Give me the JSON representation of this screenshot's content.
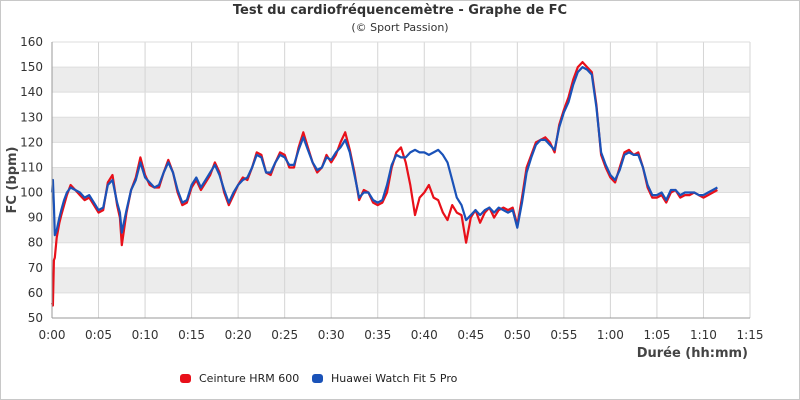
{
  "chart_data": {
    "type": "line",
    "title": "Test du cardiofréquencemètre - Graphe de FC",
    "subtitle": "(© Sport Passion)",
    "xlabel": "Durée (hh:mm)",
    "ylabel": "FC (bpm)",
    "xlim": [
      0,
      75
    ],
    "ylim": [
      50,
      160
    ],
    "x_ticks": [
      "0:00",
      "0:05",
      "0:10",
      "0:15",
      "0:20",
      "0:25",
      "0:30",
      "0:35",
      "0:40",
      "0:45",
      "0:50",
      "0:55",
      "1:00",
      "1:05",
      "1:10",
      "1:15"
    ],
    "y_ticks": [
      50,
      60,
      70,
      80,
      90,
      100,
      110,
      120,
      130,
      140,
      150,
      160
    ],
    "grid": true,
    "legend_position": "bottom",
    "series": [
      {
        "name": "Ceinture HRM 600",
        "color": "#e8101a",
        "points": [
          [
            0,
            56
          ],
          [
            0.1,
            55
          ],
          [
            0.2,
            73
          ],
          [
            0.3,
            74
          ],
          [
            0.5,
            82
          ],
          [
            0.8,
            88
          ],
          [
            1,
            91
          ],
          [
            1.3,
            95
          ],
          [
            1.6,
            99
          ],
          [
            2,
            103
          ],
          [
            2.5,
            101
          ],
          [
            3,
            99
          ],
          [
            3.5,
            97
          ],
          [
            4,
            98
          ],
          [
            4.5,
            95
          ],
          [
            5,
            92
          ],
          [
            5.5,
            93
          ],
          [
            6,
            104
          ],
          [
            6.5,
            107
          ],
          [
            7,
            95
          ],
          [
            7.3,
            90
          ],
          [
            7.5,
            79
          ],
          [
            8,
            92
          ],
          [
            8.5,
            101
          ],
          [
            9,
            106
          ],
          [
            9.5,
            114
          ],
          [
            10,
            107
          ],
          [
            10.5,
            103
          ],
          [
            11,
            102
          ],
          [
            11.5,
            102
          ],
          [
            12,
            108
          ],
          [
            12.5,
            113
          ],
          [
            13,
            108
          ],
          [
            13.5,
            100
          ],
          [
            14,
            95
          ],
          [
            14.5,
            96
          ],
          [
            15,
            102
          ],
          [
            15.5,
            105
          ],
          [
            16,
            101
          ],
          [
            16.5,
            104
          ],
          [
            17,
            107
          ],
          [
            17.5,
            112
          ],
          [
            18,
            108
          ],
          [
            18.5,
            100
          ],
          [
            19,
            95
          ],
          [
            19.5,
            99
          ],
          [
            20,
            103
          ],
          [
            20.5,
            106
          ],
          [
            21,
            105
          ],
          [
            21.5,
            110
          ],
          [
            22,
            116
          ],
          [
            22.5,
            115
          ],
          [
            23,
            108
          ],
          [
            23.5,
            107
          ],
          [
            24,
            112
          ],
          [
            24.5,
            116
          ],
          [
            25,
            115
          ],
          [
            25.5,
            110
          ],
          [
            26,
            110
          ],
          [
            26.5,
            118
          ],
          [
            27,
            124
          ],
          [
            27.5,
            118
          ],
          [
            28,
            112
          ],
          [
            28.5,
            108
          ],
          [
            29,
            110
          ],
          [
            29.5,
            115
          ],
          [
            30,
            112
          ],
          [
            30.5,
            115
          ],
          [
            31,
            120
          ],
          [
            31.5,
            124
          ],
          [
            32,
            117
          ],
          [
            32.5,
            108
          ],
          [
            33,
            97
          ],
          [
            33.5,
            101
          ],
          [
            34,
            100
          ],
          [
            34.5,
            96
          ],
          [
            35,
            95
          ],
          [
            35.5,
            96
          ],
          [
            36,
            100
          ],
          [
            36.5,
            110
          ],
          [
            37,
            116
          ],
          [
            37.5,
            118
          ],
          [
            38,
            112
          ],
          [
            38.5,
            103
          ],
          [
            39,
            91
          ],
          [
            39.5,
            98
          ],
          [
            40,
            100
          ],
          [
            40.5,
            103
          ],
          [
            41,
            98
          ],
          [
            41.5,
            97
          ],
          [
            42,
            92
          ],
          [
            42.5,
            89
          ],
          [
            43,
            95
          ],
          [
            43.5,
            92
          ],
          [
            44,
            91
          ],
          [
            44.5,
            80
          ],
          [
            45,
            90
          ],
          [
            45.5,
            93
          ],
          [
            46,
            88
          ],
          [
            46.5,
            92
          ],
          [
            47,
            94
          ],
          [
            47.5,
            90
          ],
          [
            48,
            93
          ],
          [
            48.5,
            94
          ],
          [
            49,
            93
          ],
          [
            49.5,
            94
          ],
          [
            50,
            87
          ],
          [
            50.5,
            98
          ],
          [
            51,
            110
          ],
          [
            51.5,
            115
          ],
          [
            52,
            120
          ],
          [
            52.5,
            121
          ],
          [
            53,
            122
          ],
          [
            53.5,
            120
          ],
          [
            54,
            116
          ],
          [
            54.5,
            127
          ],
          [
            55,
            133
          ],
          [
            55.5,
            138
          ],
          [
            56,
            145
          ],
          [
            56.5,
            150
          ],
          [
            57,
            152
          ],
          [
            57.5,
            150
          ],
          [
            58,
            148
          ],
          [
            58.5,
            135
          ],
          [
            59,
            115
          ],
          [
            59.5,
            110
          ],
          [
            60,
            106
          ],
          [
            60.5,
            104
          ],
          [
            61,
            110
          ],
          [
            61.5,
            116
          ],
          [
            62,
            117
          ],
          [
            62.5,
            115
          ],
          [
            63,
            116
          ],
          [
            63.5,
            110
          ],
          [
            64,
            102
          ],
          [
            64.5,
            98
          ],
          [
            65,
            98
          ],
          [
            65.5,
            99
          ],
          [
            66,
            96
          ],
          [
            66.5,
            100
          ],
          [
            67,
            101
          ],
          [
            67.5,
            98
          ],
          [
            68,
            99
          ],
          [
            68.5,
            99
          ],
          [
            69,
            100
          ],
          [
            69.5,
            99
          ],
          [
            70,
            98
          ],
          [
            70.5,
            99
          ],
          [
            71,
            100
          ],
          [
            71.5,
            101
          ]
        ]
      },
      {
        "name": "Huawei Watch Fit 5 Pro",
        "color": "#1a52b8",
        "points": [
          [
            0,
            100
          ],
          [
            0.1,
            105
          ],
          [
            0.2,
            95
          ],
          [
            0.3,
            83
          ],
          [
            0.5,
            85
          ],
          [
            0.8,
            90
          ],
          [
            1,
            93
          ],
          [
            1.3,
            97
          ],
          [
            1.6,
            100
          ],
          [
            2,
            102
          ],
          [
            2.5,
            101
          ],
          [
            3,
            100
          ],
          [
            3.5,
            98
          ],
          [
            4,
            99
          ],
          [
            4.5,
            96
          ],
          [
            5,
            93
          ],
          [
            5.5,
            94
          ],
          [
            6,
            103
          ],
          [
            6.5,
            105
          ],
          [
            7,
            96
          ],
          [
            7.3,
            92
          ],
          [
            7.5,
            84
          ],
          [
            8,
            93
          ],
          [
            8.5,
            101
          ],
          [
            9,
            105
          ],
          [
            9.5,
            112
          ],
          [
            10,
            106
          ],
          [
            10.5,
            104
          ],
          [
            11,
            102
          ],
          [
            11.5,
            103
          ],
          [
            12,
            108
          ],
          [
            12.5,
            112
          ],
          [
            13,
            108
          ],
          [
            13.5,
            101
          ],
          [
            14,
            96
          ],
          [
            14.5,
            97
          ],
          [
            15,
            103
          ],
          [
            15.5,
            106
          ],
          [
            16,
            102
          ],
          [
            16.5,
            105
          ],
          [
            17,
            108
          ],
          [
            17.5,
            111
          ],
          [
            18,
            107
          ],
          [
            18.5,
            101
          ],
          [
            19,
            96
          ],
          [
            19.5,
            100
          ],
          [
            20,
            103
          ],
          [
            20.5,
            105
          ],
          [
            21,
            106
          ],
          [
            21.5,
            110
          ],
          [
            22,
            115
          ],
          [
            22.5,
            114
          ],
          [
            23,
            108
          ],
          [
            23.5,
            108
          ],
          [
            24,
            112
          ],
          [
            24.5,
            115
          ],
          [
            25,
            114
          ],
          [
            25.5,
            111
          ],
          [
            26,
            111
          ],
          [
            26.5,
            117
          ],
          [
            27,
            122
          ],
          [
            27.5,
            117
          ],
          [
            28,
            112
          ],
          [
            28.5,
            109
          ],
          [
            29,
            110
          ],
          [
            29.5,
            114
          ],
          [
            30,
            113
          ],
          [
            30.5,
            116
          ],
          [
            31,
            118
          ],
          [
            31.5,
            121
          ],
          [
            32,
            116
          ],
          [
            32.5,
            107
          ],
          [
            33,
            98
          ],
          [
            33.5,
            100
          ],
          [
            34,
            100
          ],
          [
            34.5,
            97
          ],
          [
            35,
            96
          ],
          [
            35.5,
            97
          ],
          [
            36,
            103
          ],
          [
            36.5,
            111
          ],
          [
            37,
            115
          ],
          [
            37.5,
            114
          ],
          [
            38,
            114
          ],
          [
            38.5,
            116
          ],
          [
            39,
            117
          ],
          [
            39.5,
            116
          ],
          [
            40,
            116
          ],
          [
            40.5,
            115
          ],
          [
            41,
            116
          ],
          [
            41.5,
            117
          ],
          [
            42,
            115
          ],
          [
            42.5,
            112
          ],
          [
            43,
            105
          ],
          [
            43.5,
            98
          ],
          [
            44,
            95
          ],
          [
            44.5,
            89
          ],
          [
            45,
            91
          ],
          [
            45.5,
            93
          ],
          [
            46,
            91
          ],
          [
            46.5,
            93
          ],
          [
            47,
            94
          ],
          [
            47.5,
            92
          ],
          [
            48,
            94
          ],
          [
            48.5,
            93
          ],
          [
            49,
            92
          ],
          [
            49.5,
            93
          ],
          [
            50,
            86
          ],
          [
            50.5,
            96
          ],
          [
            51,
            108
          ],
          [
            51.5,
            114
          ],
          [
            52,
            119
          ],
          [
            52.5,
            121
          ],
          [
            53,
            121
          ],
          [
            53.5,
            119
          ],
          [
            54,
            117
          ],
          [
            54.5,
            126
          ],
          [
            55,
            132
          ],
          [
            55.5,
            136
          ],
          [
            56,
            143
          ],
          [
            56.5,
            148
          ],
          [
            57,
            150
          ],
          [
            57.5,
            149
          ],
          [
            58,
            147
          ],
          [
            58.5,
            134
          ],
          [
            59,
            116
          ],
          [
            59.5,
            111
          ],
          [
            60,
            107
          ],
          [
            60.5,
            105
          ],
          [
            61,
            109
          ],
          [
            61.5,
            115
          ],
          [
            62,
            116
          ],
          [
            62.5,
            115
          ],
          [
            63,
            115
          ],
          [
            63.5,
            110
          ],
          [
            64,
            103
          ],
          [
            64.5,
            99
          ],
          [
            65,
            99
          ],
          [
            65.5,
            100
          ],
          [
            66,
            97
          ],
          [
            66.5,
            101
          ],
          [
            67,
            101
          ],
          [
            67.5,
            99
          ],
          [
            68,
            100
          ],
          [
            68.5,
            100
          ],
          [
            69,
            100
          ],
          [
            69.5,
            99
          ],
          [
            70,
            99
          ],
          [
            70.5,
            100
          ],
          [
            71,
            101
          ],
          [
            71.5,
            102
          ]
        ]
      }
    ]
  }
}
